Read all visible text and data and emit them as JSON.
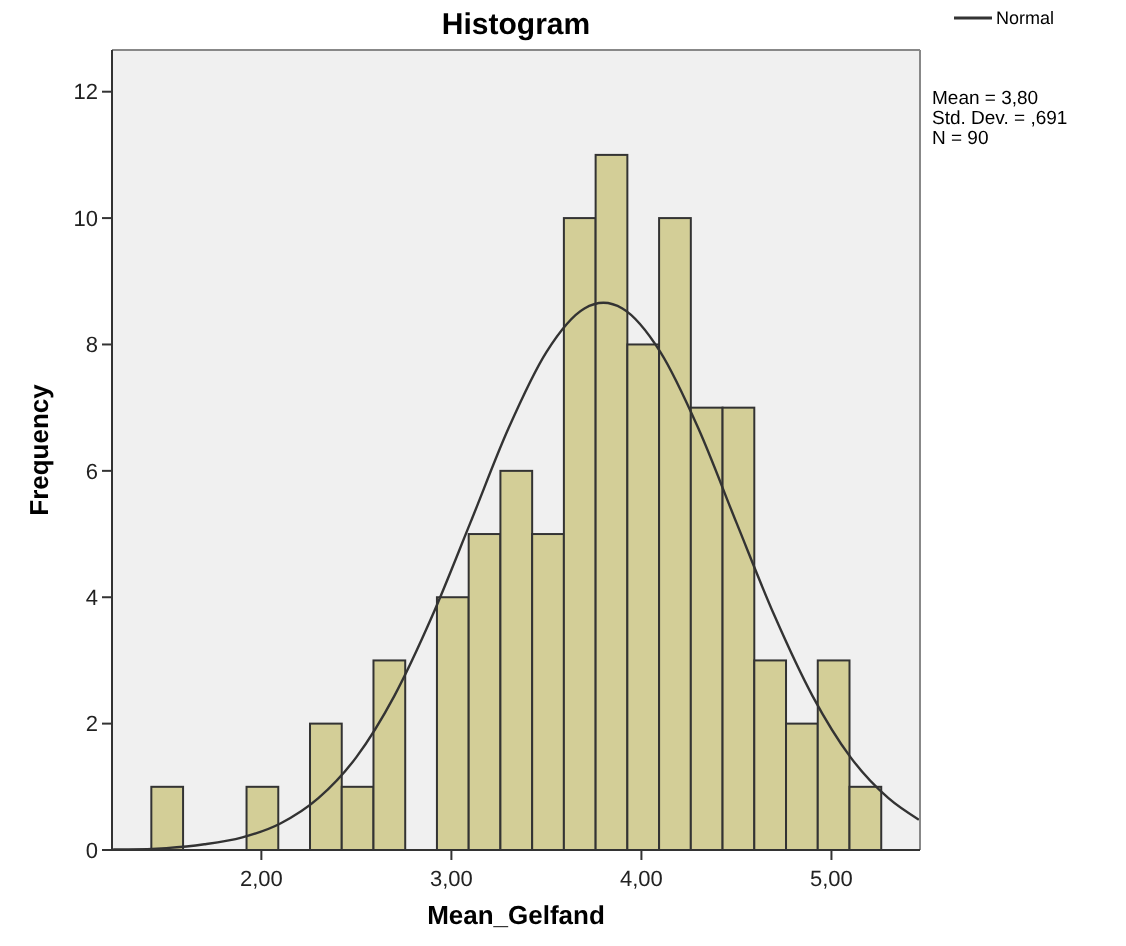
{
  "chart_data": {
    "type": "histogram",
    "title": "Histogram",
    "xlabel": "Mean_Gelfand",
    "ylabel": "Frequency",
    "bins": [
      1.421,
      1.588,
      1.755,
      1.922,
      2.089,
      2.256,
      2.423,
      2.59,
      2.757,
      2.924,
      3.091,
      3.258,
      3.425,
      3.592,
      3.759,
      3.926,
      4.093,
      4.26,
      4.427,
      4.594,
      4.761,
      4.928,
      5.095,
      5.262
    ],
    "values": [
      1,
      0,
      0,
      1,
      0,
      2,
      1,
      3,
      0,
      4,
      5,
      6,
      5,
      10,
      11,
      8,
      10,
      7,
      7,
      3,
      2,
      3,
      1
    ],
    "color": "#d3ce97",
    "series": [
      {
        "type": "line",
        "name": "Normal",
        "color": "#333333",
        "x": [
          1.22,
          1.3,
          1.5,
          1.7,
          1.9,
          2.1,
          2.3,
          2.5,
          2.7,
          2.9,
          3.1,
          3.3,
          3.5,
          3.7,
          3.8,
          3.9,
          4.1,
          4.3,
          4.5,
          4.7,
          4.9,
          5.1,
          5.3,
          5.46
        ],
        "values": [
          0.01,
          0.01,
          0.03,
          0.09,
          0.2,
          0.42,
          0.82,
          1.47,
          2.44,
          3.71,
          5.18,
          6.67,
          7.88,
          8.57,
          8.66,
          8.57,
          7.88,
          6.67,
          5.18,
          3.71,
          2.44,
          1.47,
          0.82,
          0.48
        ]
      }
    ],
    "xlim": [
      1.214,
      5.466
    ],
    "xticks": [
      {
        "value": 2,
        "label": "2,00"
      },
      {
        "value": 3,
        "label": "3,00"
      },
      {
        "value": 4,
        "label": "4,00"
      },
      {
        "value": 5,
        "label": "5,00"
      }
    ],
    "ylim": [
      0,
      12.66
    ],
    "yticks": [
      0,
      2,
      4,
      6,
      8,
      10,
      12
    ],
    "annotations": [
      "Mean = 3,80",
      "Std. Dev. = ,691",
      "N = 90"
    ],
    "legend": "top right",
    "grid": false
  }
}
